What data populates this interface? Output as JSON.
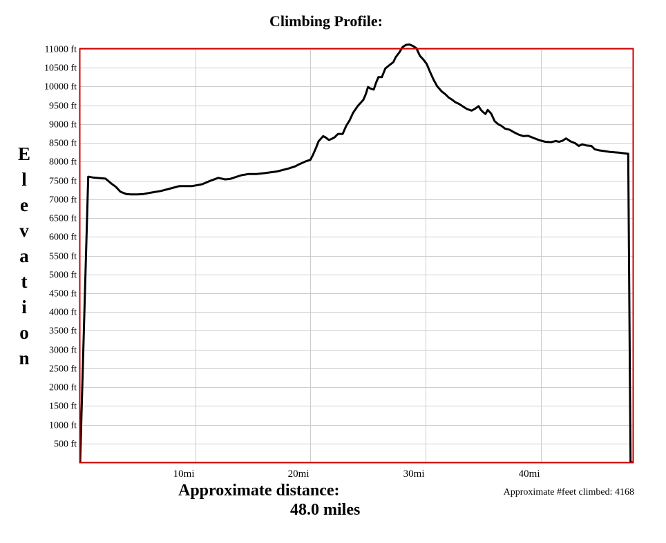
{
  "chart_data": {
    "type": "line",
    "title": "Climbing Profile:",
    "ylabel": "Elevation",
    "xlabel": "Approximate distance:",
    "distance_text": "48.0 miles",
    "climbed_text": "Approximate #feet climbed: 4168",
    "xlim": [
      0,
      48
    ],
    "ylim": [
      0,
      11000
    ],
    "grid": true,
    "colors": {
      "border": "#cc0000",
      "grid": "#cccccc",
      "line": "#000000"
    },
    "x_ticks": [
      {
        "value": 10,
        "label": "10mi"
      },
      {
        "value": 20,
        "label": "20mi"
      },
      {
        "value": 30,
        "label": "30mi"
      },
      {
        "value": 40,
        "label": "40mi"
      }
    ],
    "y_ticks": [
      {
        "value": 500,
        "label": "500 ft"
      },
      {
        "value": 1000,
        "label": "1000 ft"
      },
      {
        "value": 1500,
        "label": "1500 ft"
      },
      {
        "value": 2000,
        "label": "2000 ft"
      },
      {
        "value": 2500,
        "label": "2500 ft"
      },
      {
        "value": 3000,
        "label": "3000 ft"
      },
      {
        "value": 3500,
        "label": "3500 ft"
      },
      {
        "value": 4000,
        "label": "4000 ft"
      },
      {
        "value": 4500,
        "label": "4500 ft"
      },
      {
        "value": 5000,
        "label": "5000 ft"
      },
      {
        "value": 5500,
        "label": "5500 ft"
      },
      {
        "value": 6000,
        "label": "6000 ft"
      },
      {
        "value": 6500,
        "label": "6500 ft"
      },
      {
        "value": 7000,
        "label": "7000 ft"
      },
      {
        "value": 7500,
        "label": "7500 ft"
      },
      {
        "value": 8000,
        "label": "8000 ft"
      },
      {
        "value": 8500,
        "label": "8500 ft"
      },
      {
        "value": 9000,
        "label": "9000 ft"
      },
      {
        "value": 9500,
        "label": "9500 ft"
      },
      {
        "value": 10000,
        "label": "10000 ft"
      },
      {
        "value": 10500,
        "label": "10500 ft"
      },
      {
        "value": 11000,
        "label": "11000 ft"
      }
    ],
    "series": [
      {
        "x": [
          0.0,
          0.7,
          1.1,
          2.2,
          2.7,
          3.1,
          3.5,
          4.0,
          4.4,
          5.0,
          5.5,
          6.0,
          7.0,
          8.0,
          8.6,
          9.7,
          10.6,
          11.2,
          12.0,
          12.6,
          13.0,
          13.5,
          14.0,
          14.6,
          15.3,
          16.1,
          17.1,
          18.1,
          18.7,
          19.0,
          19.3,
          19.6,
          20.0,
          20.2,
          20.5,
          20.7,
          21.1,
          21.3,
          21.6,
          21.8,
          22.1,
          22.4,
          22.8,
          23.1,
          23.4,
          23.7,
          24.1,
          24.4,
          24.6,
          24.8,
          25.0,
          25.2,
          25.5,
          25.7,
          25.9,
          26.2,
          26.5,
          26.9,
          27.2,
          27.4,
          27.7,
          28.0,
          28.3,
          28.6,
          28.9,
          29.2,
          29.5,
          29.8,
          30.1,
          30.4,
          30.7,
          31.0,
          31.4,
          31.7,
          32.0,
          32.3,
          32.6,
          32.9,
          33.3,
          33.6,
          34.0,
          34.3,
          34.6,
          34.8,
          35.0,
          35.2,
          35.4,
          35.7,
          36.0,
          36.3,
          36.6,
          36.9,
          37.3,
          37.7,
          38.1,
          38.5,
          38.9,
          39.4,
          39.9,
          40.4,
          40.9,
          41.3,
          41.6,
          41.9,
          42.2,
          42.6,
          43.0,
          43.3,
          43.6,
          44.0,
          44.4,
          44.7,
          45.1,
          45.6,
          46.0,
          46.8,
          47.6,
          47.8,
          48.0
        ],
        "y": [
          0,
          7600,
          7580,
          7550,
          7420,
          7330,
          7200,
          7140,
          7130,
          7130,
          7140,
          7170,
          7220,
          7300,
          7350,
          7350,
          7400,
          7480,
          7570,
          7530,
          7540,
          7590,
          7640,
          7670,
          7670,
          7700,
          7740,
          7820,
          7880,
          7930,
          7970,
          8010,
          8050,
          8170,
          8380,
          8540,
          8680,
          8650,
          8580,
          8600,
          8650,
          8740,
          8740,
          8950,
          9100,
          9300,
          9480,
          9580,
          9650,
          9790,
          9990,
          9950,
          9920,
          10100,
          10250,
          10250,
          10480,
          10580,
          10650,
          10780,
          10900,
          11050,
          11110,
          11120,
          11080,
          11020,
          10820,
          10720,
          10600,
          10380,
          10180,
          10010,
          9870,
          9800,
          9710,
          9650,
          9580,
          9540,
          9460,
          9400,
          9360,
          9410,
          9480,
          9380,
          9320,
          9270,
          9380,
          9280,
          9080,
          9000,
          8950,
          8880,
          8850,
          8780,
          8720,
          8680,
          8690,
          8630,
          8570,
          8530,
          8520,
          8550,
          8530,
          8560,
          8620,
          8540,
          8490,
          8420,
          8460,
          8430,
          8420,
          8330,
          8300,
          8280,
          8260,
          8240,
          8210,
          0,
          0
        ]
      }
    ]
  }
}
